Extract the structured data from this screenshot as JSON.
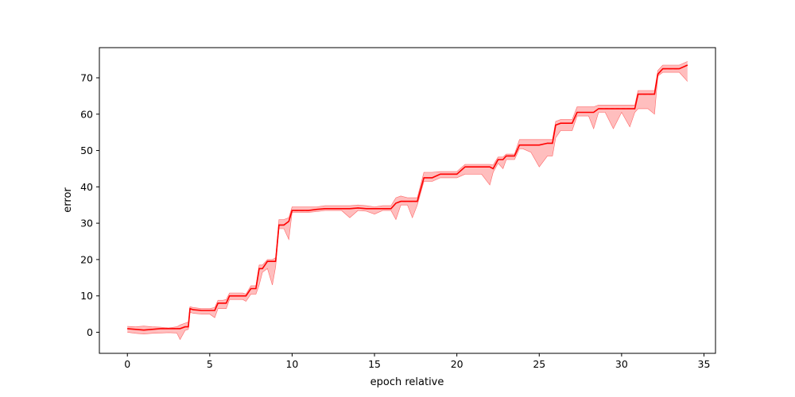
{
  "chart_data": {
    "type": "line",
    "title": "",
    "xlabel": "epoch relative",
    "ylabel": "error",
    "xlim": [
      -1.7,
      35.7
    ],
    "ylim": [
      -5.8,
      78.3
    ],
    "xticks": [
      0,
      5,
      10,
      15,
      20,
      25,
      30,
      35
    ],
    "yticks": [
      0,
      10,
      20,
      30,
      40,
      50,
      60,
      70
    ],
    "grid": false,
    "legend": "none",
    "colors": {
      "mean_line": "#ff0000",
      "band_fill": "#ffb3b3",
      "run_lines": "#ff6666",
      "median_line": "#8b0000"
    },
    "series": [
      {
        "x": [
          0,
          0.5,
          1,
          1.5,
          2,
          2.5,
          3,
          3.2,
          3.5,
          3.7,
          3.8,
          4,
          4.5,
          5,
          5.3,
          5.5,
          5.8,
          6,
          6.2,
          6.5,
          7,
          7.2,
          7.5,
          7.8,
          8,
          8.2,
          8.5,
          8.8,
          9,
          9.2,
          9.5,
          9.8,
          10,
          10.5,
          11,
          11.5,
          12,
          12.5,
          13,
          13.5,
          14,
          14.5,
          15,
          15.5,
          16,
          16.3,
          16.6,
          17,
          17.3,
          17.6,
          18,
          18.5,
          19,
          19.5,
          20,
          20.5,
          21,
          21.5,
          22,
          22.2,
          22.5,
          22.8,
          23,
          23.2,
          23.5,
          23.8,
          24,
          24.5,
          25,
          25.5,
          25.8,
          26,
          26.3,
          26.6,
          27,
          27.3,
          27.6,
          28,
          28.3,
          28.6,
          29,
          29.5,
          30,
          30.5,
          30.8,
          31,
          31.3,
          31.6,
          32,
          32.2,
          32.5,
          32.8,
          33,
          33.5,
          34
        ],
        "values": [
          1,
          0.8,
          0.6,
          0.8,
          1,
          1,
          1,
          1,
          1.5,
          1.5,
          6.5,
          6.2,
          6,
          6,
          6,
          8,
          8,
          8,
          10,
          10,
          10,
          10,
          12,
          12,
          17.5,
          17.5,
          19.5,
          19.5,
          19.5,
          29.5,
          29.5,
          30.5,
          33.5,
          33.5,
          33.5,
          33.8,
          34,
          34,
          34,
          34,
          34.2,
          34,
          34,
          34,
          34,
          35.5,
          36,
          36,
          36,
          36,
          42.5,
          42.5,
          43.5,
          43.5,
          43.5,
          45.5,
          45.5,
          45.5,
          45.5,
          45,
          47.5,
          47.5,
          48.5,
          48.5,
          48.5,
          51.5,
          51.5,
          51.5,
          51.5,
          52,
          52,
          57,
          57.5,
          57.5,
          57.5,
          60.5,
          60.5,
          60.5,
          60.5,
          61.5,
          61.5,
          61.5,
          61.5,
          61.5,
          61.5,
          65.5,
          65.5,
          65.5,
          65.5,
          71,
          72.5,
          72.5,
          72.5,
          72.5,
          73.5
        ]
      }
    ],
    "band": {
      "lower": [
        0,
        -0.3,
        -0.5,
        -0.3,
        -0.2,
        -0.1,
        -0.2,
        -2,
        0.5,
        0.8,
        5.5,
        5.2,
        5,
        5,
        4,
        6.5,
        6.5,
        6.5,
        9,
        9,
        9,
        8.5,
        10.5,
        10.5,
        13,
        16.5,
        17.5,
        13,
        18,
        28.5,
        28.5,
        25.5,
        33,
        33,
        33,
        33.2,
        33.5,
        33.5,
        33.5,
        31.5,
        33.5,
        33.3,
        32.5,
        33.5,
        33.5,
        31,
        35,
        35,
        31.5,
        35,
        41.5,
        41.5,
        42.5,
        42.5,
        42.5,
        43.5,
        43.5,
        43.5,
        40.5,
        44,
        46.5,
        45,
        47.5,
        47.5,
        47.5,
        50.5,
        50.5,
        49.5,
        45.5,
        48.5,
        48.5,
        53.5,
        55.5,
        55.5,
        55.5,
        59.5,
        59.5,
        59.5,
        56,
        60.5,
        60.5,
        56,
        60.5,
        56.5,
        60.5,
        61.5,
        61.5,
        61.5,
        60,
        70.5,
        71.5,
        71.5,
        71.5,
        71.5,
        69
      ],
      "upper": [
        1.6,
        1.5,
        1.7,
        1.5,
        1.4,
        1.2,
        1.5,
        2,
        2.5,
        2.8,
        7,
        6.8,
        6.5,
        6.5,
        6.8,
        8.8,
        8.8,
        9,
        10.8,
        10.8,
        10.8,
        10.5,
        12.8,
        12.8,
        18.5,
        18.5,
        20,
        20,
        20.5,
        31,
        31,
        31.5,
        34.5,
        34.5,
        34.5,
        34.5,
        34.8,
        34.8,
        34.8,
        34.8,
        35,
        34.8,
        34.5,
        34.8,
        34.8,
        37,
        37.5,
        37,
        37,
        37,
        44,
        44,
        44.2,
        44.2,
        44.2,
        46.2,
        46.2,
        46.2,
        46.2,
        46,
        48.2,
        48.2,
        49,
        49,
        49,
        53,
        53,
        53,
        53,
        53,
        53,
        58,
        58.5,
        58.5,
        58.5,
        62,
        62,
        62,
        62,
        62.5,
        62.5,
        62.5,
        62.5,
        62.5,
        62.5,
        66.5,
        66.5,
        66.5,
        66.5,
        72,
        73.5,
        73.5,
        73.5,
        73.5,
        74.5
      ]
    }
  },
  "axis_text": {
    "xlabel": "epoch relative",
    "ylabel": "error"
  }
}
